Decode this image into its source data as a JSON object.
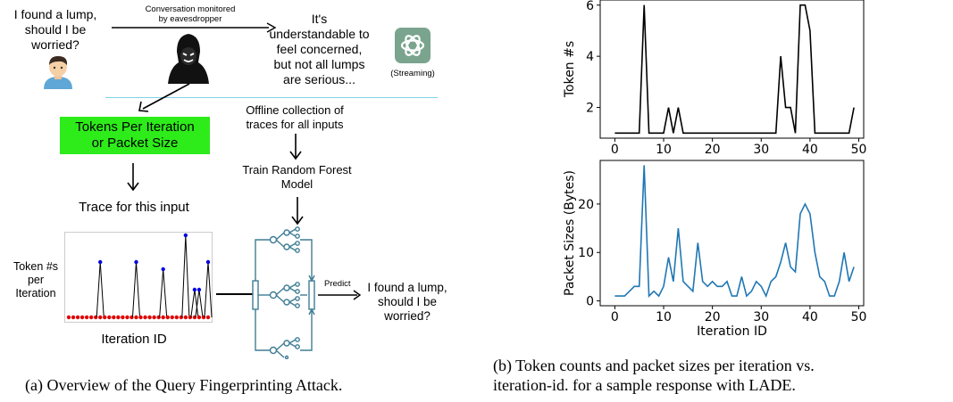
{
  "left_panel": {
    "user_query_lines": [
      "I found a lump,",
      "should I be",
      "worried?"
    ],
    "monitor_label_lines": [
      "Conversation monitored",
      "by eavesdropper"
    ],
    "response_lines": [
      "It's",
      "understandable to",
      "feel concerned,",
      "but not all lumps",
      "are serious..."
    ],
    "streaming_label": "(Streaming)",
    "green_box_lines": [
      "Tokens Per Iteration",
      "or Packet Size"
    ],
    "trace_label": "Trace for this input",
    "offline_lines": [
      "Offline collection of",
      "traces for all inputs"
    ],
    "train_lines": [
      "Train Random Forest",
      "Model"
    ],
    "token_label_lines": [
      "Token #s",
      "per",
      "Iteration"
    ],
    "iteration_id_label": "Iteration ID",
    "predict_label": "Predict",
    "prediction_lines": [
      "I found a lump,",
      "should I be",
      "worried?"
    ],
    "caption": "(a) Overview of the Query Fingerprinting Attack.",
    "colors": {
      "green_box": "#2dec1a",
      "divider": "#7fd3e8",
      "tree": "#3e7d94",
      "dot_red": "#e00000",
      "dot_blue": "#0000e0"
    }
  },
  "right_panel": {
    "caption_lines": [
      "(b) Token counts and packet sizes per iteration vs.",
      "iteration-id. for a sample response with LADE."
    ]
  },
  "chart_data": [
    {
      "type": "line",
      "ylabel": "Token #s",
      "xlabel": "",
      "xlim": [
        -3,
        51
      ],
      "ylim": [
        0.8,
        6.2
      ],
      "x_ticks": [
        0,
        10,
        20,
        30,
        40,
        50
      ],
      "y_ticks": [
        2,
        4,
        6
      ],
      "series": [
        {
          "color": "#000000",
          "x": [
            0,
            1,
            2,
            3,
            4,
            5,
            6,
            7,
            8,
            9,
            10,
            11,
            12,
            13,
            14,
            15,
            16,
            17,
            18,
            19,
            20,
            21,
            22,
            23,
            24,
            25,
            26,
            27,
            28,
            29,
            30,
            31,
            32,
            33,
            34,
            35,
            36,
            37,
            38,
            39,
            40,
            41,
            42,
            43,
            44,
            45,
            46,
            47,
            48,
            49
          ],
          "values": [
            1,
            1,
            1,
            1,
            1,
            1,
            6,
            1,
            1,
            1,
            1,
            2,
            1,
            2,
            1,
            1,
            1,
            1,
            1,
            1,
            1,
            1,
            1,
            1,
            1,
            1,
            1,
            1,
            1,
            1,
            1,
            1,
            1,
            1,
            4,
            2,
            2,
            1,
            6,
            6,
            5,
            1,
            1,
            1,
            1,
            1,
            1,
            1,
            1,
            2
          ]
        }
      ]
    },
    {
      "type": "line",
      "ylabel": "Packet Sizes (Bytes)",
      "xlabel": "Iteration ID",
      "xlim": [
        -3,
        51
      ],
      "ylim": [
        -1,
        29
      ],
      "x_ticks": [
        0,
        10,
        20,
        30,
        40,
        50
      ],
      "y_ticks": [
        0,
        10,
        20
      ],
      "series": [
        {
          "color": "#1f77b4",
          "x": [
            0,
            1,
            2,
            3,
            4,
            5,
            6,
            7,
            8,
            9,
            10,
            11,
            12,
            13,
            14,
            15,
            16,
            17,
            18,
            19,
            20,
            21,
            22,
            23,
            24,
            25,
            26,
            27,
            28,
            29,
            30,
            31,
            32,
            33,
            34,
            35,
            36,
            37,
            38,
            39,
            40,
            41,
            42,
            43,
            44,
            45,
            46,
            47,
            48,
            49
          ],
          "values": [
            1,
            1,
            1,
            2,
            3,
            3,
            28,
            1,
            2,
            1,
            3,
            9,
            4,
            15,
            4,
            3,
            2,
            12,
            4,
            3,
            4,
            3,
            3,
            4,
            1,
            1,
            5,
            1,
            2,
            4,
            3,
            1,
            4,
            5,
            8,
            12,
            7,
            6,
            18,
            20,
            18,
            10,
            5,
            4,
            1,
            1,
            4,
            10,
            4,
            7
          ]
        }
      ]
    }
  ],
  "trace_chart": {
    "type": "scatter",
    "values": [
      0,
      0,
      0,
      0,
      0,
      0,
      0,
      0,
      0,
      0,
      0,
      0,
      0,
      0,
      0,
      0,
      0,
      0,
      0,
      0,
      0,
      0,
      0,
      0,
      0,
      0,
      0,
      0,
      0,
      0,
      0,
      0,
      0,
      0,
      0,
      0,
      0,
      0,
      0,
      0,
      0,
      0,
      0,
      0,
      0,
      0,
      0,
      0,
      0,
      0,
      0,
      0,
      0,
      0,
      0,
      0,
      0,
      0,
      0,
      0,
      0,
      0,
      0,
      0,
      0,
      0,
      0,
      0,
      0,
      0,
      0,
      0,
      0,
      0,
      0,
      0,
      0,
      0,
      0,
      0,
      0,
      0,
      0,
      0,
      0,
      0,
      0,
      0,
      0,
      0,
      0,
      0,
      0,
      0,
      0,
      0,
      0,
      0,
      0,
      0
    ]
  }
}
